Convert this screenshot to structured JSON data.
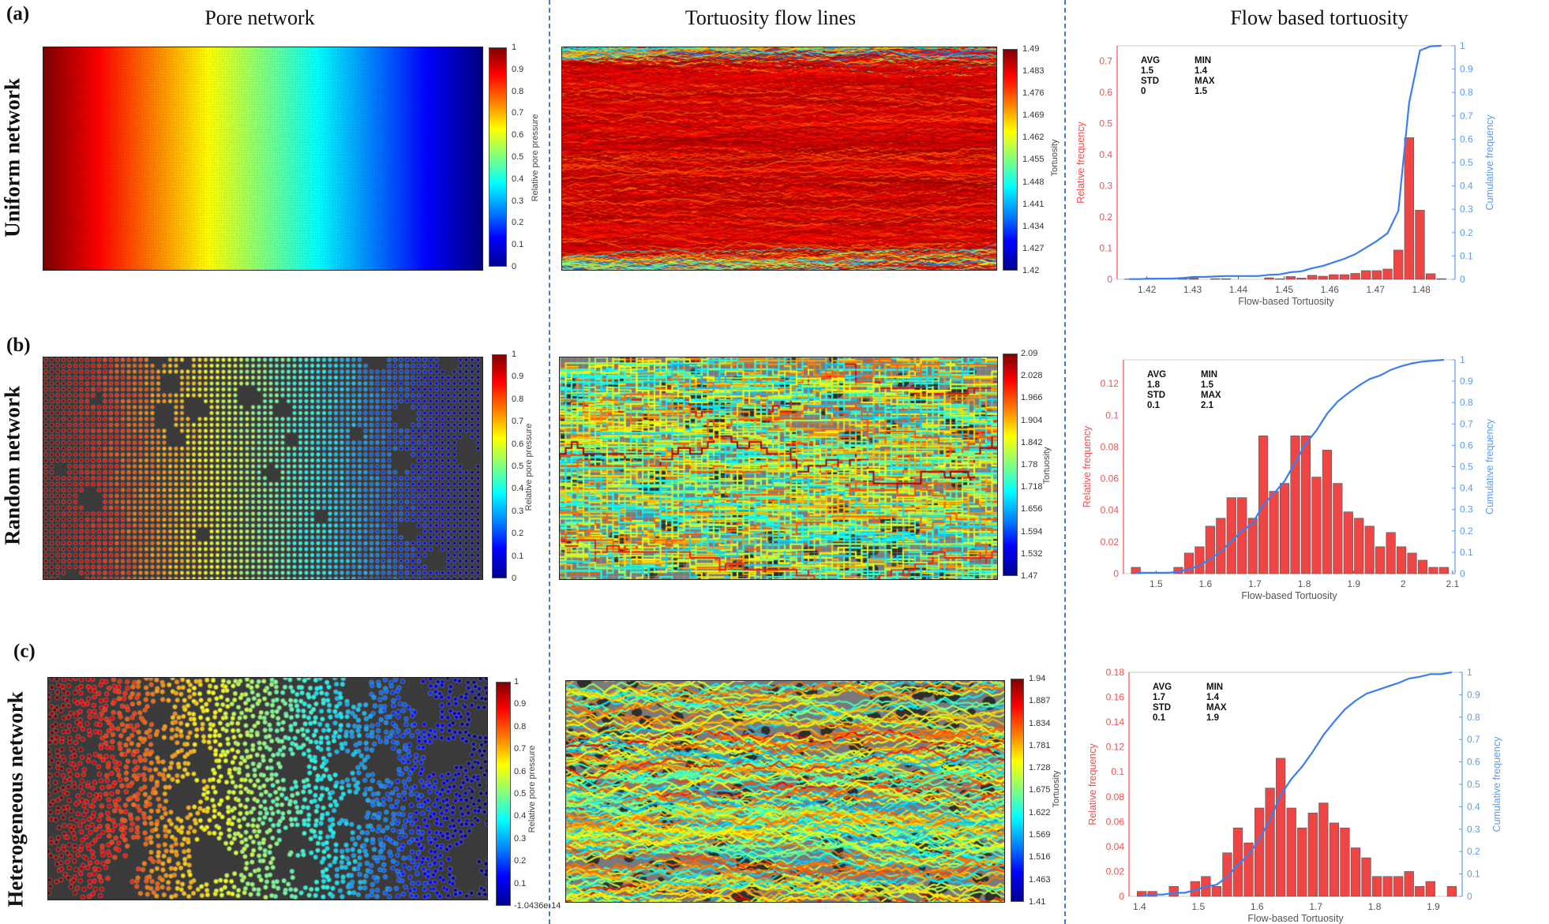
{
  "column_headers": {
    "pore": "Pore network",
    "flow": "Tortuosity flow lines",
    "hist": "Flow based tortuosity"
  },
  "panel_labels": [
    "(a)",
    "(b)",
    "(c)"
  ],
  "rows": [
    {
      "label": "Uniform network",
      "pore_colorbar": {
        "label": "Relative pore pressure",
        "ticks": [
          "1",
          "0.9",
          "0.8",
          "0.7",
          "0.6",
          "0.5",
          "0.4",
          "0.3",
          "0.2",
          "0.1",
          "0"
        ]
      },
      "flow_colorbar": {
        "label": "Tortuosity",
        "ticks": [
          "1.49",
          "1.483",
          "1.476",
          "1.469",
          "1.462",
          "1.455",
          "1.448",
          "1.441",
          "1.434",
          "1.427",
          "1.42"
        ]
      }
    },
    {
      "label": "Random network",
      "pore_colorbar": {
        "label": "Relative pore pressure",
        "ticks": [
          "1",
          "0.9",
          "0.8",
          "0.7",
          "0.6",
          "0.5",
          "0.4",
          "0.3",
          "0.2",
          "0.1",
          "0"
        ]
      },
      "flow_colorbar": {
        "label": "Tortuosity",
        "ticks": [
          "2.09",
          "2.028",
          "1.966",
          "1.904",
          "1.842",
          "1.78",
          "1.718",
          "1.656",
          "1.594",
          "1.532",
          "1.47"
        ]
      }
    },
    {
      "label": "Heterogeneous network",
      "pore_colorbar": {
        "label": "Relative pore pressure",
        "ticks": [
          "1",
          "0.9",
          "0.8",
          "0.7",
          "0.6",
          "0.5",
          "0.4",
          "0.3",
          "0.2",
          "0.1",
          "-1.0436e-14"
        ]
      },
      "flow_colorbar": {
        "label": "Tortuosity",
        "ticks": [
          "1.94",
          "1.887",
          "1.834",
          "1.781",
          "1.728",
          "1.675",
          "1.622",
          "1.569",
          "1.516",
          "1.463",
          "1.41"
        ]
      }
    }
  ],
  "colors": {
    "bars": "#f04545",
    "left_axis": "#f05050",
    "cumulative": "#3a7ff0",
    "right_axis": "#5b9bf0",
    "divider": "#4a78c8"
  },
  "chart_data": [
    {
      "type": "bar",
      "title": "Flow based tortuosity (Uniform network)",
      "xlabel": "Flow-based Tortuosity",
      "ylabel": "Relative frequency",
      "y2label": "Cumulative frequency",
      "stats": {
        "AVG_label": "AVG",
        "AVG": "1.5",
        "STD_label": "STD",
        "STD": "0",
        "MIN_label": "MIN",
        "MIN": "1.4",
        "MAX_label": "MAX",
        "MAX": "1.5"
      },
      "first_bin_center": 1.4161,
      "bin_width": 0.002356,
      "values": [
        0.001,
        0,
        0.002,
        0,
        0,
        0.003,
        0.004,
        0,
        0.002,
        0.002,
        0,
        0,
        0,
        0.005,
        0.002,
        0.009,
        0.004,
        0.013,
        0.01,
        0.015,
        0.015,
        0.019,
        0.028,
        0.028,
        0.033,
        0.094,
        0.455,
        0.222,
        0.018,
        0.002
      ],
      "xlim": [
        1.4135,
        1.4874
      ],
      "ylim": [
        0,
        0.75
      ],
      "y2lim": [
        0,
        1
      ],
      "xticks": [
        "1.42",
        "1.43",
        "1.44",
        "1.45",
        "1.46",
        "1.47",
        "1.48"
      ],
      "yticks": [
        "0",
        "0.1",
        "0.2",
        "0.3",
        "0.4",
        "0.5",
        "0.6",
        "0.7"
      ],
      "y2ticks": [
        "0",
        "0.1",
        "0.2",
        "0.3",
        "0.4",
        "0.5",
        "0.6",
        "0.7",
        "0.8",
        "0.9",
        "1"
      ],
      "grid": false
    },
    {
      "type": "bar",
      "title": "Flow based tortuosity (Random network)",
      "xlabel": "Flow-based Tortuosity",
      "ylabel": "Relative frequency",
      "y2label": "Cumulative frequency",
      "stats": {
        "AVG_label": "AVG",
        "AVG": "1.8",
        "STD_label": "STD",
        "STD": "0.1",
        "MIN_label": "MIN",
        "MIN": "1.5",
        "MAX_label": "MAX",
        "MAX": "2.1"
      },
      "first_bin_center": 1.459,
      "bin_width": 0.0215,
      "values": [
        0.004,
        0,
        0,
        0,
        0.004,
        0.013,
        0.017,
        0.03,
        0.035,
        0.048,
        0.048,
        0.035,
        0.087,
        0.052,
        0.057,
        0.087,
        0.087,
        0.061,
        0.078,
        0.057,
        0.039,
        0.035,
        0.03,
        0.017,
        0.026,
        0.017,
        0.013,
        0.0085,
        0.004,
        0.004
      ],
      "xlim": [
        1.434,
        2.105
      ],
      "ylim": [
        0,
        0.135
      ],
      "y2lim": [
        0,
        1
      ],
      "xticks": [
        "1.5",
        "1.6",
        "1.7",
        "1.8",
        "1.9",
        "2",
        "2.1"
      ],
      "yticks": [
        "0",
        "0.02",
        "0.04",
        "0.06",
        "0.08",
        "0.1",
        "0.12"
      ],
      "y2ticks": [
        "0",
        "0.1",
        "0.2",
        "0.3",
        "0.4",
        "0.5",
        "0.6",
        "0.7",
        "0.8",
        "0.9",
        "1"
      ],
      "grid": false
    },
    {
      "type": "bar",
      "title": "Flow based tortuosity (Heterogeneous network)",
      "xlabel": "Flow-based Tortuosity",
      "ylabel": "Relative frequency",
      "y2label": "Cumulative frequency",
      "stats": {
        "AVG_label": "AVG",
        "AVG": "1.7",
        "STD_label": "STD",
        "STD": "0.1",
        "MIN_label": "MIN",
        "MIN": "1.4",
        "MAX_label": "MAX",
        "MAX": "1.9"
      },
      "first_bin_center": 1.4036,
      "bin_width": 0.0182,
      "values": [
        0.004,
        0.004,
        0,
        0.008,
        0,
        0.012,
        0.016,
        0.008,
        0.035,
        0.055,
        0.043,
        0.071,
        0.087,
        0.111,
        0.071,
        0.055,
        0.067,
        0.075,
        0.059,
        0.055,
        0.039,
        0.031,
        0.016,
        0.016,
        0.016,
        0.02,
        0.008,
        0.012,
        0,
        0.008
      ],
      "xlim": [
        1.382,
        1.949
      ],
      "ylim": [
        0,
        0.18
      ],
      "y2lim": [
        0,
        1
      ],
      "xticks": [
        "1.4",
        "1.5",
        "1.6",
        "1.7",
        "1.8",
        "1.9"
      ],
      "yticks": [
        "0",
        "0.02",
        "0.04",
        "0.06",
        "0.08",
        "0.1",
        "0.12",
        "0.14",
        "0.16",
        "0.18"
      ],
      "y2ticks": [
        "0",
        "0.1",
        "0.2",
        "0.3",
        "0.4",
        "0.5",
        "0.6",
        "0.7",
        "0.8",
        "0.9",
        "1"
      ],
      "grid": false
    }
  ]
}
